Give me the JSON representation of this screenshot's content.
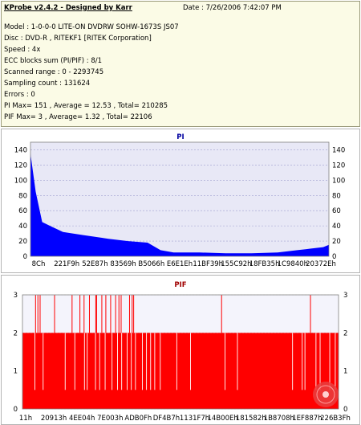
{
  "info": {
    "title": "KProbe v2.4.2 - Designed by Karr",
    "date": "Date : 7/26/2006 7:42:07 PM",
    "lines": [
      "Model : 1-0-0-0 LITE-ON DVDRW SOHW-1673S JS07",
      "Disc : DVD-R , RITEKF1 [RITEK Corporation]",
      "Speed : 4x",
      "ECC blocks sum (PI/PIF) : 8/1",
      "Scanned range : 0 - 2293745",
      "Sampling count : 131624",
      "Errors : 0",
      "PI Max= 151 , Average = 12.53 , Total= 210285",
      "PIF Max= 3 , Average= 1.32 , Total= 22106"
    ]
  },
  "chart_data": [
    {
      "type": "area",
      "title": "PI",
      "ylim": [
        0,
        150
      ],
      "yticks": [
        0,
        20,
        40,
        60,
        80,
        100,
        120,
        140
      ],
      "xticks": [
        "8Ch",
        "221F9h",
        "52E87h",
        "83569h",
        "B5066h",
        "E6E1Eh",
        "11BF39h",
        "155C92h",
        "18FB35h",
        "1C9840h",
        "20372Eh"
      ],
      "x_range": [
        140,
        2293745
      ],
      "grid": true,
      "colors": {
        "fill": "#0000ff",
        "background": "#e8e8f6",
        "grid": "#a0a0d0"
      },
      "series": [
        {
          "x": [
            140,
            40000,
            90000,
            150000,
            250000,
            400000,
            600000,
            750000,
            900000,
            1000000,
            1100000,
            1200000,
            1300000,
            1500000,
            1700000,
            1900000,
            2050000,
            2150000,
            2250000,
            2293745
          ],
          "y": [
            135,
            85,
            45,
            40,
            32,
            28,
            23,
            20,
            18,
            8,
            5,
            5,
            5,
            4,
            4,
            5,
            8,
            10,
            12,
            15
          ]
        }
      ]
    },
    {
      "type": "bar",
      "title": "PIF",
      "ylim": [
        0,
        3
      ],
      "yticks": [
        0,
        1,
        2,
        3
      ],
      "xticks": [
        "11h",
        "20913h",
        "4EE04h",
        "7E003h",
        "ADB0Fh",
        "DF4B7h",
        "1131F7h",
        "14B00Eh",
        "181582h",
        "1B8708h",
        "1EF887h",
        "226B3Fh"
      ],
      "x_range": [
        17,
        2293745
      ],
      "base_level": 2,
      "colors": {
        "fill": "#ff0000",
        "background": "#f4f4fc",
        "grid": "#c8c8d8"
      },
      "spikes_to_3": [
        95000,
        112000,
        128000,
        233000,
        360000,
        417000,
        447000,
        486000,
        532000,
        538000,
        576000,
        605000,
        640000,
        676000,
        700000,
        716000,
        777000,
        796000,
        807000,
        1445000,
        2090000
      ],
      "gaps_below_2": [
        90000,
        150000,
        310000,
        380000,
        450000,
        470000,
        530000,
        560000,
        600000,
        650000,
        690000,
        720000,
        760000,
        790000,
        820000,
        870000,
        900000,
        930000,
        960000,
        1000000,
        1120000,
        1220000,
        1470000,
        1560000,
        1960000,
        2030000,
        2050000,
        2130000,
        2160000,
        2230000,
        2270000
      ]
    }
  ]
}
